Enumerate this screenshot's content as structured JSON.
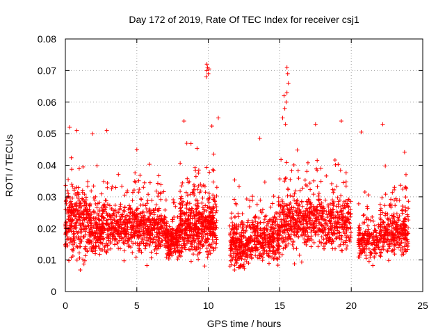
{
  "chart_data": {
    "type": "scatter",
    "title": "Day 172 of 2019, Rate Of TEC Index for receiver csj1",
    "xlabel": "GPS time / hours",
    "ylabel": "ROTI / TECUs",
    "xlim": [
      0,
      25
    ],
    "ylim": [
      0,
      0.08
    ],
    "xticks": [
      0,
      5,
      10,
      15,
      20,
      25
    ],
    "xtick_labels": [
      "0",
      "5",
      "10",
      "15",
      "20",
      "25"
    ],
    "yticks": [
      0,
      0.01,
      0.02,
      0.03,
      0.04,
      0.05,
      0.06,
      0.07,
      0.08
    ],
    "ytick_labels": [
      "0",
      "0.01",
      "0.02",
      "0.03",
      "0.04",
      "0.05",
      "0.06",
      "0.07",
      "0.08"
    ],
    "grid": true,
    "marker": "+",
    "series_color": "#ff0000",
    "series": [
      {
        "name": "ROTI",
        "clusters": [
          {
            "x_range": [
              0,
              1.5
            ],
            "y_center": 0.022,
            "spread": 0.011,
            "count": 260
          },
          {
            "x_range": [
              1.5,
              3.0
            ],
            "y_center": 0.02,
            "spread": 0.009,
            "count": 240
          },
          {
            "x_range": [
              3.0,
              4.8
            ],
            "y_center": 0.021,
            "spread": 0.008,
            "count": 230
          },
          {
            "x_range": [
              4.8,
              7.0
            ],
            "y_center": 0.02,
            "spread": 0.008,
            "count": 330
          },
          {
            "x_range": [
              7.0,
              8.0
            ],
            "y_center": 0.016,
            "spread": 0.006,
            "count": 180
          },
          {
            "x_range": [
              8.0,
              10.6
            ],
            "y_center": 0.021,
            "spread": 0.01,
            "count": 520
          },
          {
            "x_range": [
              11.5,
              13.0
            ],
            "y_center": 0.015,
            "spread": 0.007,
            "count": 260
          },
          {
            "x_range": [
              13.0,
              15.0
            ],
            "y_center": 0.017,
            "spread": 0.008,
            "count": 300
          },
          {
            "x_range": [
              15.0,
              17.5
            ],
            "y_center": 0.022,
            "spread": 0.009,
            "count": 360
          },
          {
            "x_range": [
              17.5,
              20.0
            ],
            "y_center": 0.022,
            "spread": 0.009,
            "count": 330
          },
          {
            "x_range": [
              20.5,
              22.0
            ],
            "y_center": 0.016,
            "spread": 0.006,
            "count": 170
          },
          {
            "x_range": [
              22.0,
              24.0
            ],
            "y_center": 0.019,
            "spread": 0.008,
            "count": 300
          }
        ],
        "highlights": [
          {
            "x": 9.9,
            "y": 0.072
          },
          {
            "x": 9.95,
            "y": 0.071
          },
          {
            "x": 9.9,
            "y": 0.07
          },
          {
            "x": 10.0,
            "y": 0.069
          },
          {
            "x": 9.85,
            "y": 0.068
          },
          {
            "x": 10.05,
            "y": 0.0705
          },
          {
            "x": 15.5,
            "y": 0.071
          },
          {
            "x": 15.55,
            "y": 0.069
          },
          {
            "x": 15.6,
            "y": 0.066
          },
          {
            "x": 15.5,
            "y": 0.063
          },
          {
            "x": 15.3,
            "y": 0.062
          },
          {
            "x": 15.45,
            "y": 0.06
          },
          {
            "x": 15.35,
            "y": 0.058
          },
          {
            "x": 15.2,
            "y": 0.055
          },
          {
            "x": 15.4,
            "y": 0.053
          },
          {
            "x": 10.7,
            "y": 0.055
          },
          {
            "x": 8.3,
            "y": 0.054
          },
          {
            "x": 19.3,
            "y": 0.054
          },
          {
            "x": 0.3,
            "y": 0.052
          },
          {
            "x": 0.8,
            "y": 0.051
          },
          {
            "x": 22.2,
            "y": 0.053
          },
          {
            "x": 20.7,
            "y": 0.0505
          },
          {
            "x": 13.6,
            "y": 0.0485
          },
          {
            "x": 17.5,
            "y": 0.053
          },
          {
            "x": 2.9,
            "y": 0.051
          },
          {
            "x": 5.0,
            "y": 0.045
          },
          {
            "x": 1.9,
            "y": 0.05
          }
        ]
      }
    ]
  }
}
